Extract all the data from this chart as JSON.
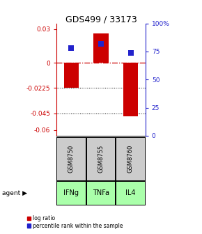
{
  "title": "GDS499 / 33173",
  "samples": [
    "GSM8750",
    "GSM8755",
    "GSM8760"
  ],
  "agents": [
    "IFNg",
    "TNFa",
    "IL4"
  ],
  "log_ratios": [
    -0.022,
    0.026,
    -0.048
  ],
  "percentile_ranks": [
    78,
    82,
    74
  ],
  "left_yticks": [
    0.03,
    0,
    -0.0225,
    -0.045,
    -0.06
  ],
  "left_ytick_labels": [
    "0.03",
    "0",
    "-0.0225",
    "-0.045",
    "-0.06"
  ],
  "right_yticks_pct": [
    100,
    75,
    50,
    25,
    0
  ],
  "right_ytick_labels": [
    "100%",
    "75",
    "50",
    "25",
    "0"
  ],
  "ylim": [
    -0.065,
    0.035
  ],
  "bar_color": "#cc0000",
  "dot_color": "#2222cc",
  "zero_line_color": "#cc0000",
  "grid_color": "#000000",
  "sample_bg_color": "#cccccc",
  "agent_bg_color": "#aaffaa",
  "left_axis_color": "#cc0000",
  "right_axis_color": "#2222cc",
  "bar_width": 0.5,
  "dot_size": 30,
  "agent_label": "agent",
  "legend_log": "log ratio",
  "legend_pct": "percentile rank within the sample"
}
